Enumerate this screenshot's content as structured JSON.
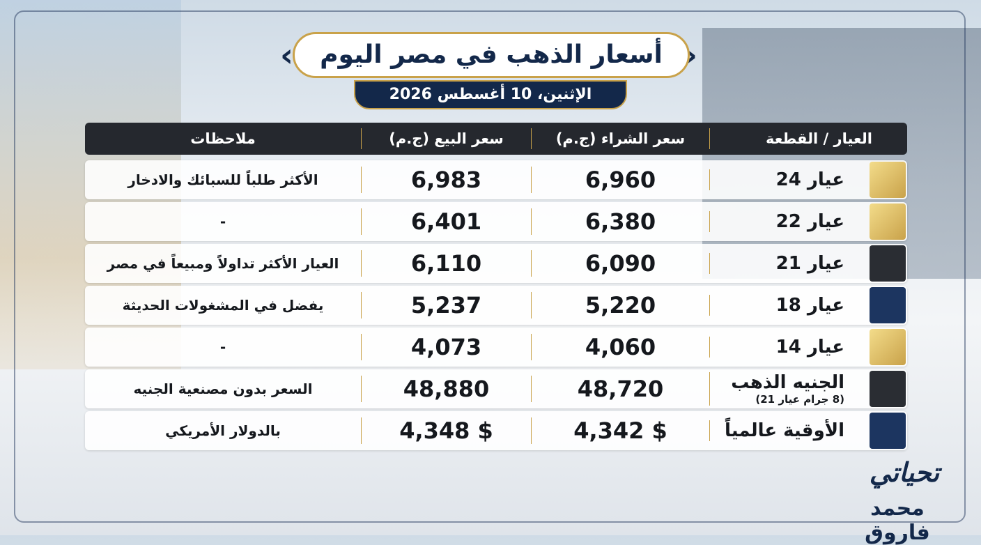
{
  "header": {
    "title": "أسعار الذهب في مصر اليوم",
    "date": "الإثنين، 10 أغسطس 2026"
  },
  "table": {
    "headers": [
      "العيار / القطعة",
      "سعر الشراء (ج.م)",
      "سعر البيع (ج.م)",
      "ملاحظات"
    ],
    "rows": [
      {
        "item": "عيار 24",
        "buy": "6,960",
        "sell": "6,983",
        "note": "الأكثر طلباً للسبائك والادخار"
      },
      {
        "item": "عيار 22",
        "buy": "6,380",
        "sell": "6,401",
        "note": "-"
      },
      {
        "item": "عيار 21",
        "buy": "6,090",
        "sell": "6,110",
        "note": "العيار الأكثر تداولاً ومبيعاً في مصر"
      },
      {
        "item": "عيار 18",
        "buy": "5,220",
        "sell": "5,237",
        "note": "يفضل في المشغولات الحديثة"
      },
      {
        "item": "عيار 14",
        "buy": "4,060",
        "sell": "4,073",
        "note": "-"
      },
      {
        "item": "الجنيه الذهب",
        "sub": "(8 جرام عيار 21)",
        "buy": "48,720",
        "sell": "48,880",
        "note": "السعر بدون مصنعية الجنيه"
      },
      {
        "item": "الأوقية عالمياً",
        "buy": "$ 4,342",
        "sell": "$ 4,348",
        "note": "بالدولار الأمريكي"
      }
    ]
  },
  "signature": {
    "greeting": "تحياتي",
    "name": "محمد فاروق"
  }
}
